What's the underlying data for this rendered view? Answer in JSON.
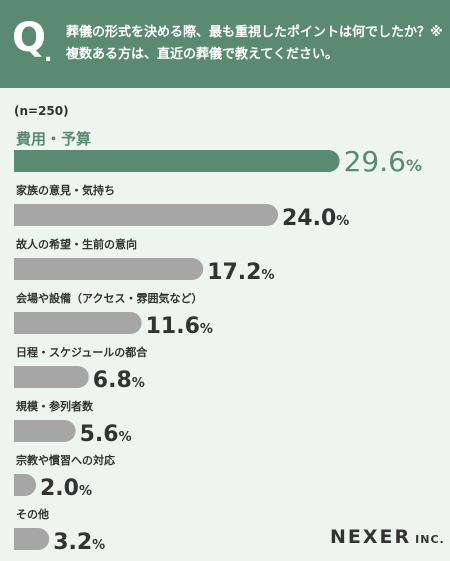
{
  "header": {
    "q_letter": "Q",
    "q_dot": ".",
    "question": "葬儀の形式を決める際、最も重視したポイントは何でしたか？※複数ある方は、直近の葬儀で教えてください。"
  },
  "sample_size": "(n=250)",
  "chart_data": {
    "type": "bar",
    "orientation": "horizontal",
    "title": "",
    "xlabel": "",
    "ylabel": "",
    "value_suffix": "%",
    "xlim": [
      0,
      30
    ],
    "categories": [
      "費用・予算",
      "家族の意見・気持ち",
      "故人の希望・生前の意向",
      "会場や設備（アクセス・雰囲気など）",
      "日程・スケジュールの都合",
      "規模・参列者数",
      "宗教や慣習への対応",
      "その他"
    ],
    "values": [
      29.6,
      24.0,
      17.2,
      11.6,
      6.8,
      5.6,
      2.0,
      3.2
    ],
    "value_labels": [
      "29.6",
      "24.0",
      "17.2",
      "11.6",
      "6.8",
      "5.6",
      "2.0",
      "3.2"
    ],
    "colors": {
      "highlight": "#5a8a72",
      "default": "#a6a6a6",
      "highlight_text": "#5a8a72",
      "default_text": "#333333"
    }
  },
  "footer": {
    "brand": "NEXER",
    "brand_suffix": "INC."
  }
}
